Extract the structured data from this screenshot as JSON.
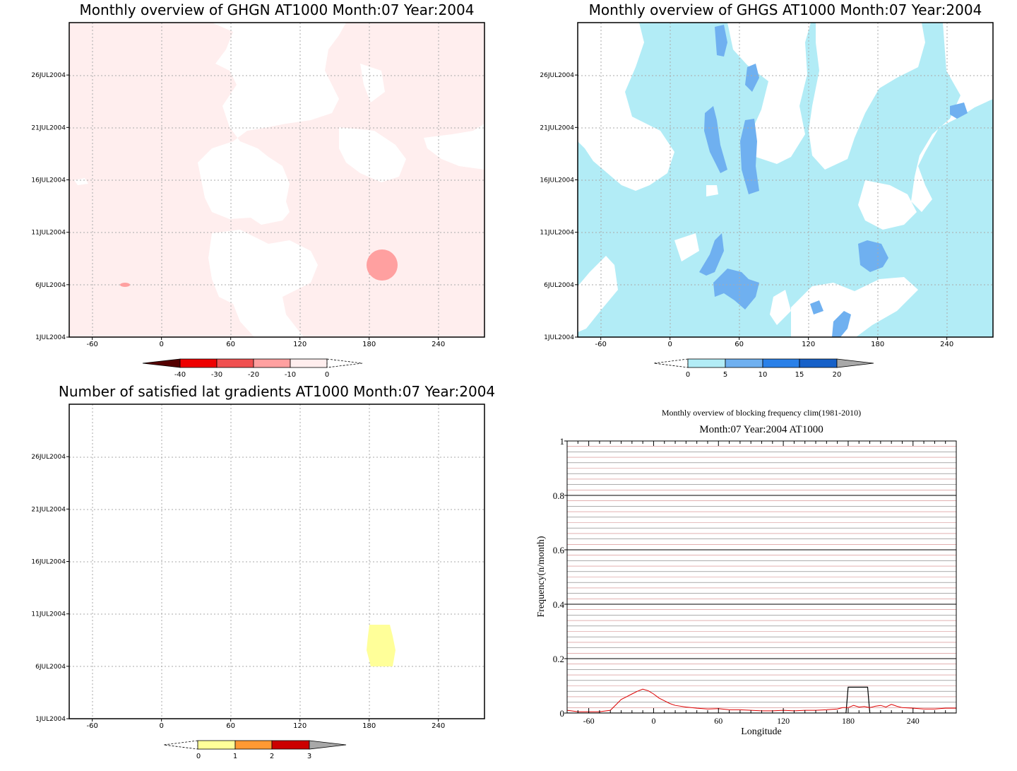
{
  "colors": {
    "neg_0_10": "#ffeeee",
    "neg_10_20": "#ffa0a0",
    "neg_20_30": "#f05050",
    "neg_30_40": "#ee0000",
    "neg_lt_40": "#550000",
    "pos_0_5": "#b2ecf6",
    "pos_5_10": "#6fb0f0",
    "pos_10_15": "#2a80e8",
    "pos_15_20": "#1660c8",
    "over": "#a8a8a8",
    "cnt_0_1": "#ffff99",
    "cnt_1_2": "#ff9933",
    "cnt_2_3": "#cc0000",
    "freq_line": "#dd0000",
    "clim_line": "#000000",
    "minor_grid": "#d08080"
  },
  "chart_data": [
    {
      "id": "ghgn",
      "type": "heatmap",
      "title": "Monthly overview of GHGN AT1000 Month:07 Year:2004",
      "x_ticks": [
        "-60",
        "0",
        "60",
        "120",
        "180",
        "240"
      ],
      "y_ticks": [
        "1JUL2004",
        "6JUL2004",
        "11JUL2004",
        "16JUL2004",
        "21JUL2004",
        "26JUL2004"
      ],
      "xlim": [
        -80,
        280
      ],
      "ylim": [
        1,
        31
      ],
      "colorbar": {
        "labels": [
          "-40",
          "-30",
          "-20",
          "-10",
          "0"
        ]
      },
      "features": [
        {
          "level": "-10 to 0",
          "extent": "most of domain"
        },
        {
          "level": "-20 to -10",
          "lon": 190,
          "day": 8.9
        },
        {
          "level": "-20 to -10",
          "lon": -30,
          "day": 6.0
        }
      ]
    },
    {
      "id": "ghgs",
      "type": "heatmap",
      "title": "Monthly overview of GHGS AT1000 Month:07 Year:2004",
      "x_ticks": [
        "-60",
        "0",
        "60",
        "120",
        "180",
        "240"
      ],
      "y_ticks": [
        "1JUL2004",
        "6JUL2004",
        "11JUL2004",
        "16JUL2004",
        "21JUL2004",
        "26JUL2004"
      ],
      "xlim": [
        -80,
        280
      ],
      "ylim": [
        1,
        31
      ],
      "colorbar": {
        "labels": [
          "0",
          "5",
          "10",
          "15",
          "20"
        ]
      },
      "features": [
        {
          "level": "5 to 10",
          "lon": 47,
          "day": 19
        },
        {
          "level": "5 to 10",
          "lon": 30,
          "day": 19.8
        },
        {
          "level": "5 to 10",
          "lon": 180,
          "day": 8.7
        },
        {
          "level": "5 to 10",
          "lon": 58,
          "day": 5.0
        }
      ]
    },
    {
      "id": "lat-gradients",
      "type": "heatmap",
      "title": "Number of satisfied lat gradients AT1000 Month:07 Year:2004",
      "x_ticks": [
        "-60",
        "0",
        "60",
        "120",
        "180",
        "240"
      ],
      "y_ticks": [
        "1JUL2004",
        "6JUL2004",
        "11JUL2004",
        "16JUL2004",
        "21JUL2004",
        "26JUL2004"
      ],
      "xlim": [
        -80,
        280
      ],
      "ylim": [
        1,
        31
      ],
      "colorbar": {
        "labels": [
          "0",
          "1",
          "2",
          "3"
        ]
      },
      "features": [
        {
          "level": "0 to 1",
          "lon_range": [
            177,
            200
          ],
          "day_range": [
            6,
            10
          ]
        }
      ]
    },
    {
      "id": "blocking-frequency",
      "type": "line",
      "title": "Monthly overview of blocking frequency clim(1981-2010)",
      "subtitle": "Month:07 Year:2004  AT1000",
      "xlabel": "Longitude",
      "ylabel": "Frequency(n/month)",
      "xlim": [
        -80,
        280
      ],
      "ylim": [
        0,
        1
      ],
      "x_ticks": [
        "-60",
        "0",
        "60",
        "120",
        "180",
        "240"
      ],
      "y_ticks": [
        "0",
        "0.2",
        "0.4",
        "0.6",
        "0.8",
        "1"
      ],
      "series": [
        {
          "x": [
            -80,
            -70,
            -60,
            -50,
            -40,
            -35,
            -30,
            -25,
            -20,
            -15,
            -10,
            -5,
            0,
            5,
            10,
            15,
            20,
            30,
            40,
            50,
            60,
            70,
            80,
            90,
            100,
            110,
            120,
            130,
            140,
            150,
            160,
            170,
            175,
            180,
            185,
            190,
            195,
            200,
            205,
            210,
            215,
            220,
            225,
            230,
            240,
            250,
            260,
            270,
            280
          ],
          "values": [
            0.01,
            0.005,
            0.005,
            0.005,
            0.01,
            0.03,
            0.05,
            0.06,
            0.07,
            0.08,
            0.088,
            0.082,
            0.07,
            0.055,
            0.045,
            0.035,
            0.028,
            0.022,
            0.018,
            0.015,
            0.016,
            0.012,
            0.012,
            0.01,
            0.008,
            0.008,
            0.01,
            0.008,
            0.01,
            0.01,
            0.012,
            0.015,
            0.02,
            0.02,
            0.028,
            0.022,
            0.024,
            0.02,
            0.025,
            0.028,
            0.022,
            0.032,
            0.025,
            0.02,
            0.018,
            0.015,
            0.015,
            0.018,
            0.018
          ]
        },
        {
          "x": [
            -80,
            100,
            170,
            178,
            180,
            198,
            200,
            210,
            280
          ],
          "values": [
            0,
            0,
            0,
            0,
            0.095,
            0.095,
            0,
            0,
            0
          ]
        }
      ]
    }
  ]
}
